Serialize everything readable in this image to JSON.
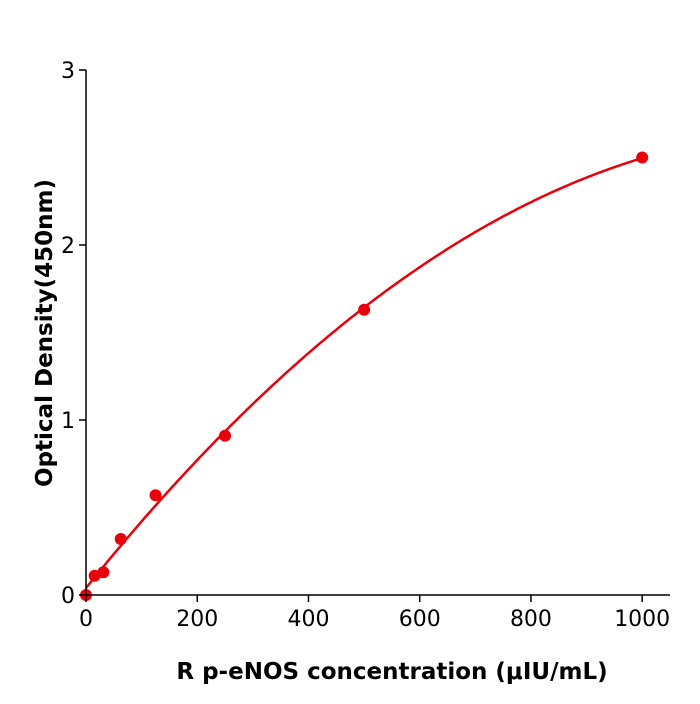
{
  "chart_data": {
    "type": "scatter",
    "title": "",
    "xlabel": "R  p-eNOS concentration (μIU/mL)",
    "ylabel": "Optical Density(450nm)",
    "xlim": [
      0,
      1050
    ],
    "ylim": [
      0,
      3
    ],
    "xticks": [
      "0",
      "200",
      "400",
      "600",
      "800",
      "1000"
    ],
    "yticks": [
      "0",
      "1",
      "2",
      "3"
    ],
    "grid": false,
    "color": "#e8000b",
    "series": [
      {
        "x": [
          0,
          15.6,
          31.25,
          62.5,
          125,
          250,
          500,
          1000
        ],
        "y": [
          0.0,
          0.11,
          0.13,
          0.32,
          0.57,
          0.91,
          1.63,
          2.5
        ],
        "fit_curve": true
      }
    ]
  }
}
